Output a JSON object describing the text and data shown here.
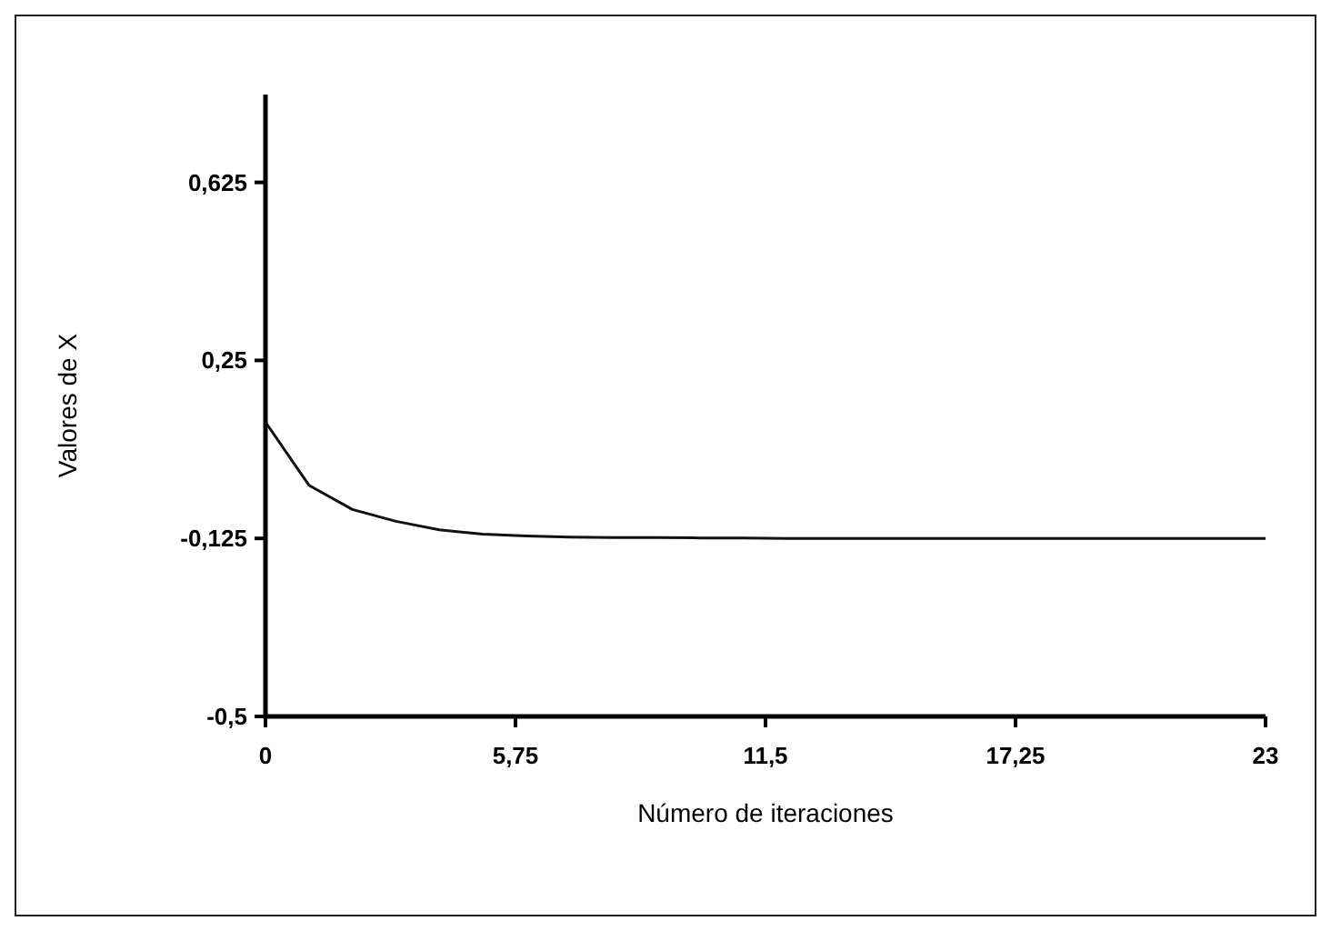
{
  "chart_data": {
    "type": "line",
    "xlabel": "Número de iteraciones",
    "ylabel": "Valores de X",
    "x": [
      0,
      1,
      2,
      3,
      4,
      5,
      6,
      7,
      8,
      9,
      10,
      11,
      12,
      13,
      14,
      15,
      16,
      17,
      18,
      19,
      20,
      21,
      22,
      23
    ],
    "values": [
      0.12,
      -0.013,
      -0.064,
      -0.089,
      -0.107,
      -0.116,
      -0.12,
      -0.122,
      -0.123,
      -0.123,
      -0.124,
      -0.124,
      -0.125,
      -0.125,
      -0.125,
      -0.125,
      -0.125,
      -0.125,
      -0.125,
      -0.125,
      -0.125,
      -0.125,
      -0.125,
      -0.125
    ],
    "color": "#111111",
    "xlim": [
      0,
      23
    ],
    "xticks": [
      {
        "value": 0,
        "label": "0"
      },
      {
        "value": 5.75,
        "label": "5,75"
      },
      {
        "value": 11.5,
        "label": "11,5"
      },
      {
        "value": 17.25,
        "label": "17,25"
      },
      {
        "value": 23,
        "label": "23"
      }
    ],
    "ylim": [
      -0.5,
      0.81
    ],
    "yticks": [
      {
        "value": -0.5,
        "label": "-0,5"
      },
      {
        "value": -0.125,
        "label": "-0,125"
      },
      {
        "value": 0.25,
        "label": "0,25"
      },
      {
        "value": 0.625,
        "label": "0,625"
      }
    ],
    "grid": false,
    "marker": "none",
    "line_style": "solid"
  }
}
